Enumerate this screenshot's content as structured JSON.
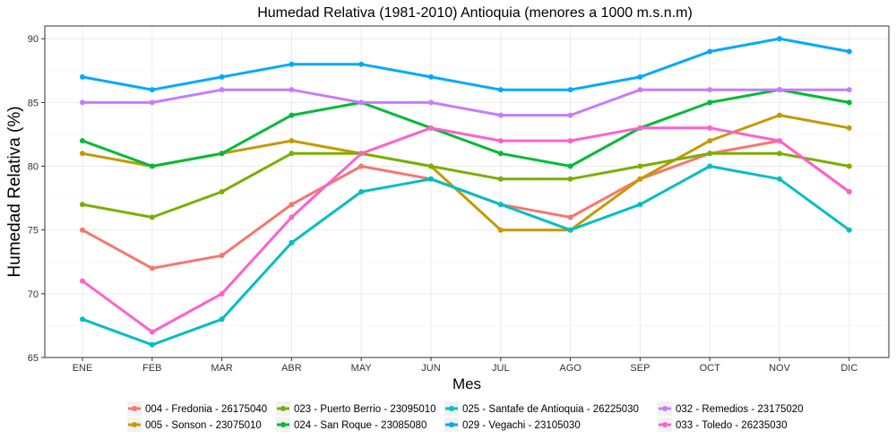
{
  "chart_data": {
    "type": "line",
    "title": "Humedad Relativa (1981-2010) Antioquia (menores a 1000 m.s.n.m)",
    "xlabel": "Mes",
    "ylabel": "Humedad Relativa (%)",
    "categories": [
      "ENE",
      "FEB",
      "MAR",
      "ABR",
      "MAY",
      "JUN",
      "JUL",
      "AGO",
      "SEP",
      "OCT",
      "NOV",
      "DIC"
    ],
    "ylim": [
      65,
      91
    ],
    "yticks": [
      65,
      70,
      75,
      80,
      85,
      90
    ],
    "grid": true,
    "legend_position": "bottom",
    "series": [
      {
        "name": "004 - Fredonia - 26175040",
        "color": "#F8766D",
        "values": [
          75,
          72,
          73,
          77,
          80,
          79,
          77,
          76,
          79,
          81,
          82,
          78
        ]
      },
      {
        "name": "005 - Sonson - 23075010",
        "color": "#C49A00",
        "values": [
          81,
          80,
          81,
          82,
          81,
          80,
          75,
          75,
          79,
          82,
          84,
          83
        ]
      },
      {
        "name": "023 - Puerto Berrio - 23095010",
        "color": "#7CAE00",
        "values": [
          77,
          76,
          78,
          81,
          81,
          80,
          79,
          79,
          80,
          81,
          81,
          80
        ]
      },
      {
        "name": "024 - San Roque - 23085080",
        "color": "#00BA38",
        "values": [
          82,
          80,
          81,
          84,
          85,
          83,
          81,
          80,
          83,
          85,
          86,
          85
        ]
      },
      {
        "name": "025 - Santafe de Antioquia - 26225030",
        "color": "#00BFC4",
        "values": [
          68,
          66,
          68,
          74,
          78,
          79,
          77,
          75,
          77,
          80,
          79,
          75
        ]
      },
      {
        "name": "029 - Vegachi - 23105030",
        "color": "#00A9FF",
        "values": [
          87,
          86,
          87,
          88,
          88,
          87,
          86,
          86,
          87,
          89,
          90,
          89
        ]
      },
      {
        "name": "032 - Remedios - 23175020",
        "color": "#C77CFF",
        "values": [
          85,
          85,
          86,
          86,
          85,
          85,
          84,
          84,
          86,
          86,
          86,
          86
        ]
      },
      {
        "name": "033 - Toledo - 26235030",
        "color": "#FF61CC",
        "values": [
          71,
          67,
          70,
          76,
          81,
          83,
          82,
          82,
          83,
          83,
          82,
          78
        ]
      }
    ]
  }
}
